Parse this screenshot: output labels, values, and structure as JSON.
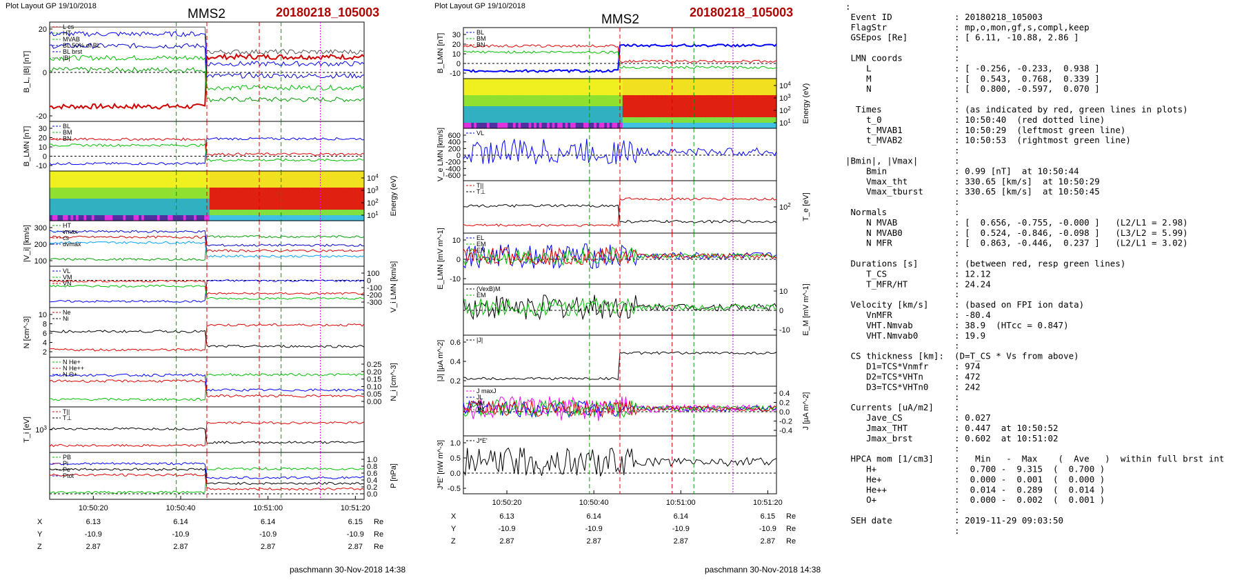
{
  "left": {
    "header": "Plot Layout GP 19/10/2018",
    "title": "MMS2",
    "event": "20180218_105003",
    "footer": "paschmann 30-Nov-2018 14:38",
    "xticks": [
      "10:50:20",
      "10:50:40",
      "10:51:00",
      "10:51:20"
    ],
    "coords": {
      "X": [
        "6.13",
        "6.14",
        "6.14",
        "6.15"
      ],
      "Y": [
        "-10.9",
        "-10.9",
        "-10.9",
        "-10.9"
      ],
      "Z": [
        "2.87",
        "2.87",
        "2.87",
        "2.87"
      ],
      "unit": "Re"
    },
    "panels": [
      {
        "ylabel": "B_L, |B| [nT]",
        "ticks": [
          "20",
          "0",
          "-20"
        ],
        "legend": [
          "L cs",
          "HT",
          "MVAB",
          "BL 50% of BL",
          "BL brst",
          "|B|"
        ],
        "legend_colors": [
          "#d00000",
          "#00a000",
          "#00c000",
          "#0000d0",
          "#0000ff",
          "#555555"
        ]
      },
      {
        "ylabel": "B_LMN [nT]",
        "ticks": [
          "30",
          "20",
          "10",
          "0",
          "-10"
        ],
        "legend": [
          "BL",
          "BM",
          "BN"
        ],
        "legend_colors": [
          "#0000ff",
          "#00c000",
          "#e00000"
        ]
      },
      {
        "ylabel": "Energy (eV)",
        "ticks": [
          "10^4",
          "10^3",
          "10^2",
          "10^1"
        ]
      },
      {
        "ylabel": "|V_i| [km/s]",
        "ticks": [
          "300",
          "200",
          "100"
        ],
        "legend": [
          "HT",
          "vmax",
          "cs",
          "dvmax"
        ],
        "legend_colors": [
          "#00a000",
          "#00a0ff",
          "#d00000",
          "#0000d0"
        ]
      },
      {
        "ylabel": "V_i LMN [km/s]",
        "ticks": [
          "100",
          "0",
          "-100",
          "-200",
          "-300"
        ],
        "legend": [
          "VL",
          "VM",
          "VN"
        ],
        "legend_colors": [
          "#0000ff",
          "#00c000",
          "#e00000"
        ]
      },
      {
        "ylabel": "N [cm^-3]",
        "ticks": [
          "10",
          "8",
          "6",
          "4",
          "2"
        ],
        "legend": [
          "Ne",
          "Ni"
        ],
        "legend_colors": [
          "#e00000",
          "#000000"
        ]
      },
      {
        "ylabel": "N_i [cm^-3]",
        "ticks": [
          "0.25",
          "0.20",
          "0.15",
          "0.10",
          "0.05",
          "0.00"
        ],
        "legend": [
          "N He+",
          "N He++",
          "N O+"
        ],
        "legend_colors": [
          "#00c000",
          "#e00000",
          "#0000ff"
        ]
      },
      {
        "ylabel": "T_i [eV]",
        "ticks": [
          "10^3"
        ],
        "legend": [
          "T||",
          "T⊥"
        ],
        "legend_colors": [
          "#e00000",
          "#000000"
        ]
      },
      {
        "ylabel": "P [nPa]",
        "ticks": [
          "1.0",
          "0.8",
          "0.6",
          "0.4",
          "0.2",
          "0.0"
        ],
        "legend": [
          "PB",
          "Pi",
          "Pe",
          "Ptot"
        ],
        "legend_colors": [
          "#00c000",
          "#e00000",
          "#000000",
          "#0000ff"
        ]
      }
    ]
  },
  "middle": {
    "header": "Plot Layout GP 19/10/2018",
    "title": "MMS2",
    "event": "20180218_105003",
    "footer": "paschmann 30-Nov-2018 14:38",
    "xticks": [
      "10:50:20",
      "10:50:40",
      "10:51:00",
      "10:51:20"
    ],
    "coords": {
      "X": [
        "6.13",
        "6.14",
        "6.14",
        "6.15"
      ],
      "Y": [
        "-10.9",
        "-10.9",
        "-10.9",
        "-10.9"
      ],
      "Z": [
        "2.87",
        "2.87",
        "2.87",
        "2.87"
      ],
      "unit": "Re"
    },
    "panels": [
      {
        "ylabel": "B_LMN [nT]",
        "ticks": [
          "30",
          "20",
          "10",
          "0",
          "-10"
        ],
        "legend": [
          "BL",
          "BM",
          "BN"
        ],
        "legend_colors": [
          "#0000ff",
          "#00c000",
          "#e00000"
        ]
      },
      {
        "ylabel": "Energy (eV)",
        "ticks": [
          "10^4",
          "10^3",
          "10^2",
          "10^1"
        ]
      },
      {
        "ylabel": "V_e LMN [km/s]",
        "ticks": [
          "600",
          "400",
          "200",
          "0",
          "-200",
          "-400",
          "-600"
        ],
        "legend": [
          "VL"
        ],
        "legend_colors": [
          "#0000ff"
        ]
      },
      {
        "ylabel": "T_e [eV]",
        "ticks": [
          "10^2"
        ],
        "legend": [
          "T||",
          "T⊥"
        ],
        "legend_colors": [
          "#e00000",
          "#000000"
        ]
      },
      {
        "ylabel": "E_LMN [mV m^-1]",
        "ticks": [
          "10",
          "0",
          "-10"
        ],
        "legend": [
          "EL",
          "EM",
          "EN"
        ],
        "legend_colors": [
          "#0000ff",
          "#00c000",
          "#e00000"
        ]
      },
      {
        "ylabel": "E_M [mV m^-1]",
        "ticks": [
          "10",
          "0",
          "-10"
        ],
        "legend": [
          "(VexB)M",
          "EM"
        ],
        "legend_colors": [
          "#000000",
          "#00c000"
        ]
      },
      {
        "ylabel": "|J| [µA m^-2]",
        "ticks": [
          "0.6",
          "0.4",
          "0.2"
        ],
        "legend": [
          "|J|"
        ],
        "legend_colors": [
          "#000000"
        ]
      },
      {
        "ylabel": "J [µA m^-2]",
        "ticks": [
          "0.4",
          "0.2",
          "0.0",
          "-0.2",
          "-0.4"
        ],
        "legend": [
          "J maxJ",
          "JL",
          "JM",
          "JN"
        ],
        "legend_colors": [
          "#ff00ff",
          "#0000ff",
          "#00c000",
          "#e00000"
        ]
      },
      {
        "ylabel": "J*E' [nW m^-3]",
        "ticks": [
          "1.0",
          "0.5",
          "0.0",
          "-0.5"
        ],
        "legend": [
          "J*E'"
        ],
        "legend_colors": [
          "#000000"
        ]
      }
    ]
  },
  "summary_lines": [
    ":",
    " Event ID            : 20180218_105003",
    " FlagStr             : mp,o,mon,gf,s,compl,keep",
    " GSEpos [Re]         : [ 6.11, -10.88, 2.86 ]",
    "                     :",
    " LMN coords          :",
    "    L                : [ -0.256, -0.233,  0.938 ]",
    "    M                : [  0.543,  0.768,  0.339 ]",
    "    N                : [  0.800, -0.597,  0.070 ]",
    "                     :",
    "  Times              : (as indicated by red, green lines in plots)",
    "    t_0              : 10:50:40  (red dotted line)",
    "    t_MVAB1          : 10:50:29  (leftmost green line)",
    "    t_MVAB2          : 10:50:53  (rightmost green line)",
    "                     :",
    "|Bmin|, |Vmax|       :",
    "    Bmin             : 0.99 [nT]  at 10:50:44",
    "    Vmax_tht         : 330.65 [km/s]  at 10:50:29",
    "    Vmax_tburst      : 330.65 [km/s]  at 10:50:45",
    "                     :",
    " Normals             :",
    "    N MVAB           : [  0.656, -0.755, -0.000 ]   (L2/L1 = 2.98)",
    "    N MVAB0          : [  0.524, -0.846, -0.098 ]   (L3/L2 = 5.99)",
    "    N MFR            : [  0.863, -0.446,  0.237 ]   (L2/L1 = 3.02)",
    "                     :",
    " Durations [s]       : (between red, resp green lines)",
    "    T_CS             : 12.12",
    "    T_MFR/HT         : 24.24",
    "                     :",
    " Velocity [km/s]     : (based on FPI ion data)",
    "    VnMFR            : -80.4",
    "    VHT.Nmvab        : 38.9  (HTcc = 0.847)",
    "    VHT.Nmvab0       : 19.9",
    "                     :",
    " CS thickness [km]:  (D=T_CS * Vs from above)",
    "    D1=TCS*Vnmfr     : 974",
    "    D2=TCS*VHTn      : 472",
    "    D3=TCS*VHTn0     : 242",
    "                     :",
    " Currents [uA/m2]    :",
    "    Jave_CS          : 0.027",
    "    Jmax_THT         : 0.447  at 10:50:52",
    "    Jmax_brst        : 0.602  at 10:51:02",
    "                     :",
    " HPCA mom [1/cm3]    :   Min   -  Max    (  Ave   )  within full brst int",
    "    H+               :  0.700 -  9.315  (  0.700 )",
    "    He+              :  0.000 -  0.001  (  0.000 )",
    "    He++             :  0.014 -  0.289  (  0.014 )",
    "    O+               :  0.000 -  0.002  (  0.001 )",
    "                     :",
    " SEH date            : 2019-11-29 09:03:50",
    "                     :"
  ],
  "chart_data": [
    {
      "type": "line",
      "title": "MMS2",
      "subtitle": "20180218_105003",
      "x_range": [
        "10:50:10",
        "10:51:22"
      ],
      "xticks": [
        "10:50:20",
        "10:50:40",
        "10:51:00",
        "10:51:20"
      ],
      "markers": {
        "red_dashed": [
          "10:50:36",
          "10:50:48"
        ],
        "green_dashed": [
          "10:50:29",
          "10:50:53"
        ],
        "magenta_dotted": "10:51:02"
      },
      "series": [
        {
          "name": "BL brst",
          "panel": "B_L, |B|",
          "x_sec": [
            0,
            10,
            20,
            27,
            32,
            36,
            40,
            44,
            48,
            52,
            56,
            60,
            64,
            68,
            72
          ],
          "y": [
            26,
            28,
            32,
            36,
            30,
            18,
            2,
            -8,
            -8,
            -9,
            -11,
            -10,
            -5,
            -6,
            -7
          ]
        },
        {
          "name": "Ni",
          "panel": "N",
          "x_sec": [
            0,
            20,
            32,
            36,
            40,
            44,
            50,
            56,
            60,
            64,
            72
          ],
          "y": [
            0.5,
            0.6,
            0.8,
            4,
            8,
            9,
            8.6,
            9.1,
            9.4,
            9.2,
            9.3
          ]
        },
        {
          "name": "N He++",
          "panel": "N_i",
          "x_sec": [
            4,
            28,
            40,
            52,
            60,
            70
          ],
          "y": [
            0.01,
            0.03,
            0.29,
            0.17,
            0.29,
            0.17
          ]
        }
      ]
    },
    {
      "type": "line",
      "title": "MMS2",
      "subtitle": "20180218_105003",
      "x_range": [
        "10:50:10",
        "10:51:22"
      ],
      "xticks": [
        "10:50:20",
        "10:50:40",
        "10:51:00",
        "10:51:20"
      ],
      "markers": {
        "red_dashed": [
          "10:50:36",
          "10:50:48"
        ],
        "green_dashed": [
          "10:50:29",
          "10:50:53"
        ],
        "magenta_dotted": "10:51:02"
      },
      "series": [
        {
          "name": "BL",
          "panel": "B_LMN",
          "x_sec": [
            0,
            10,
            20,
            28,
            32,
            36,
            40,
            50,
            60,
            72
          ],
          "y": [
            27,
            28,
            30,
            34,
            34,
            20,
            -2,
            -6,
            -8,
            -6
          ]
        },
        {
          "name": "|J|",
          "panel": "|J|",
          "x_sec": [
            0,
            20,
            30,
            36,
            40,
            50,
            56,
            62,
            64,
            72
          ],
          "y": [
            0.03,
            0.04,
            0.06,
            0.1,
            0.12,
            0.1,
            0.3,
            0.6,
            0.1,
            0.08
          ]
        }
      ]
    }
  ]
}
